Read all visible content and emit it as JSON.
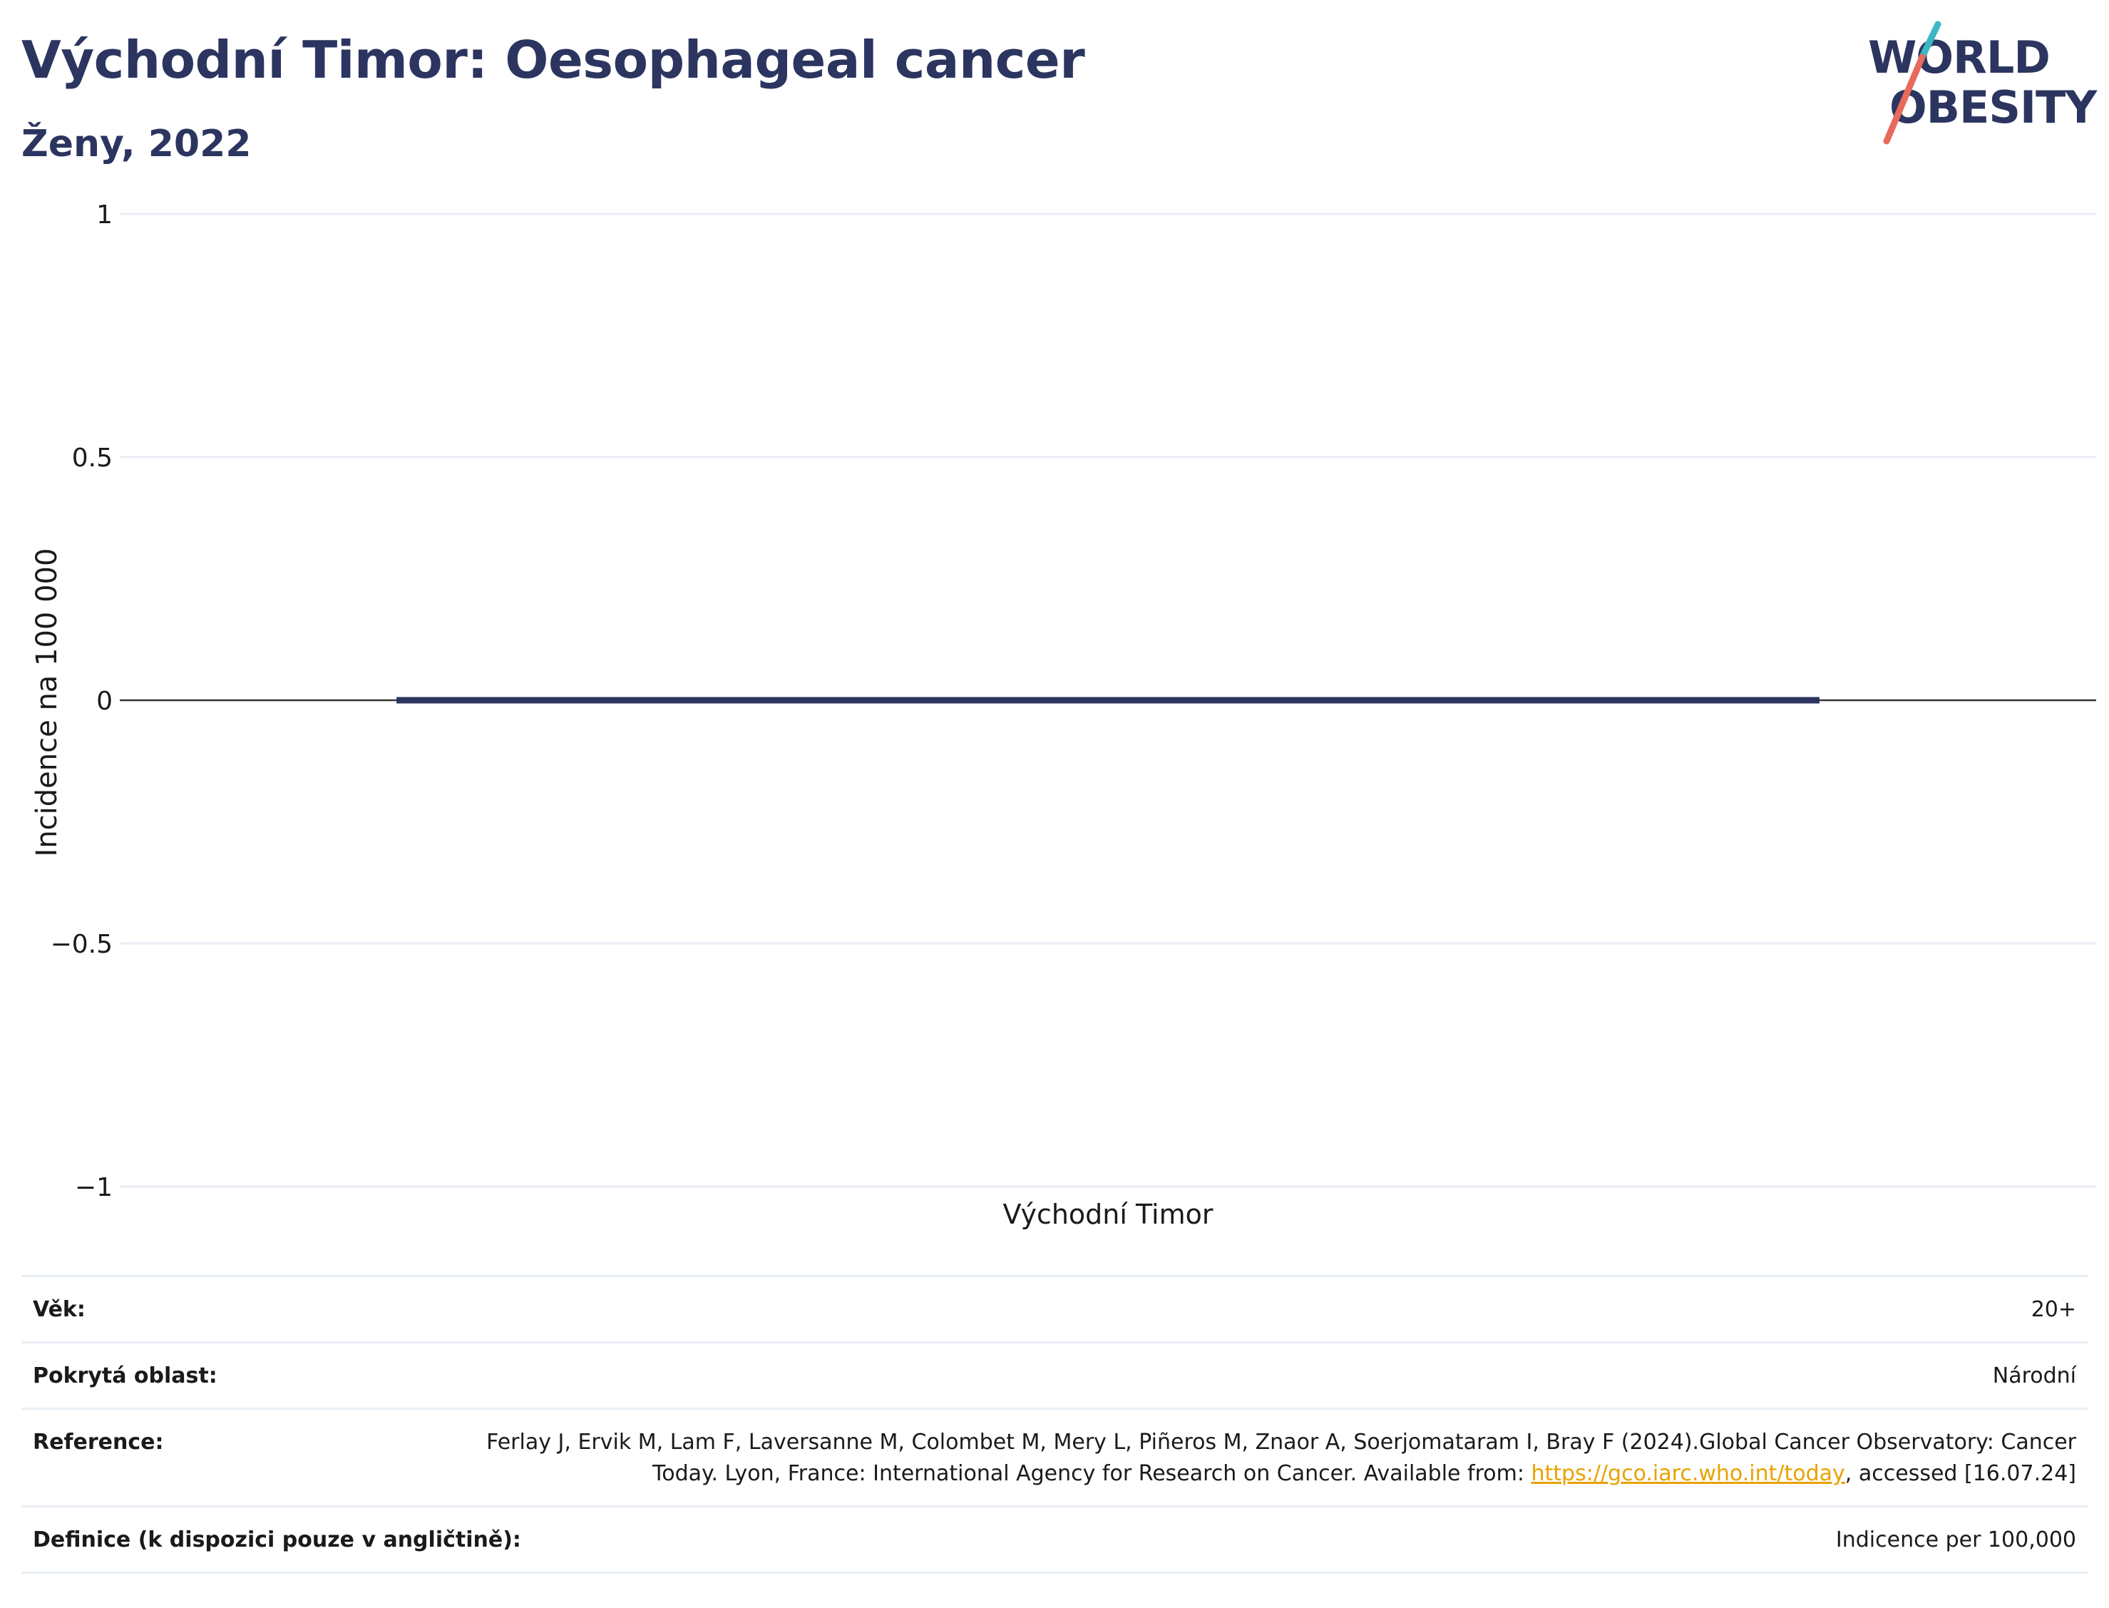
{
  "title": "Východní Timor: Oesophageal cancer",
  "subtitle": "Ženy, 2022",
  "logo": {
    "line1": "WORLD",
    "line2": "OBESITY",
    "accent_teal": "#3bb8c4",
    "accent_coral": "#e76a5b"
  },
  "chart_data": {
    "type": "bar",
    "categories": [
      "Východní Timor"
    ],
    "series": [
      {
        "values": [
          0
        ]
      }
    ],
    "xlabel": "",
    "ylabel": "Incidence na 100 000",
    "ylim": [
      -1,
      1
    ],
    "yticks": [
      "1",
      "0.5",
      "0",
      "−0.5",
      "−1"
    ],
    "ytick_values": [
      1,
      0.5,
      0,
      -0.5,
      -1
    ],
    "grid": true,
    "bar_color": "#2b3560"
  },
  "info": {
    "age_label": "Věk:",
    "age_value": "20+",
    "coverage_label": "Pokrytá oblast:",
    "coverage_value": "Národní",
    "reference_label": "Reference:",
    "reference_text_1": "Ferlay J, Ervik M, Lam F, Laversanne M, Colombet M, Mery L, Piñeros M, Znaor A, Soerjomataram I, Bray F (2024).Global Cancer Observatory: Cancer Today. Lyon, France: International Agency for Research on Cancer. Available from: ",
    "reference_link": "https://gco.iarc.who.int/today",
    "reference_text_2": ", accessed [16.07.24]",
    "definition_label": "Definice (k dispozici pouze v angličtině):",
    "definition_value": "Indicence per 100,000"
  }
}
